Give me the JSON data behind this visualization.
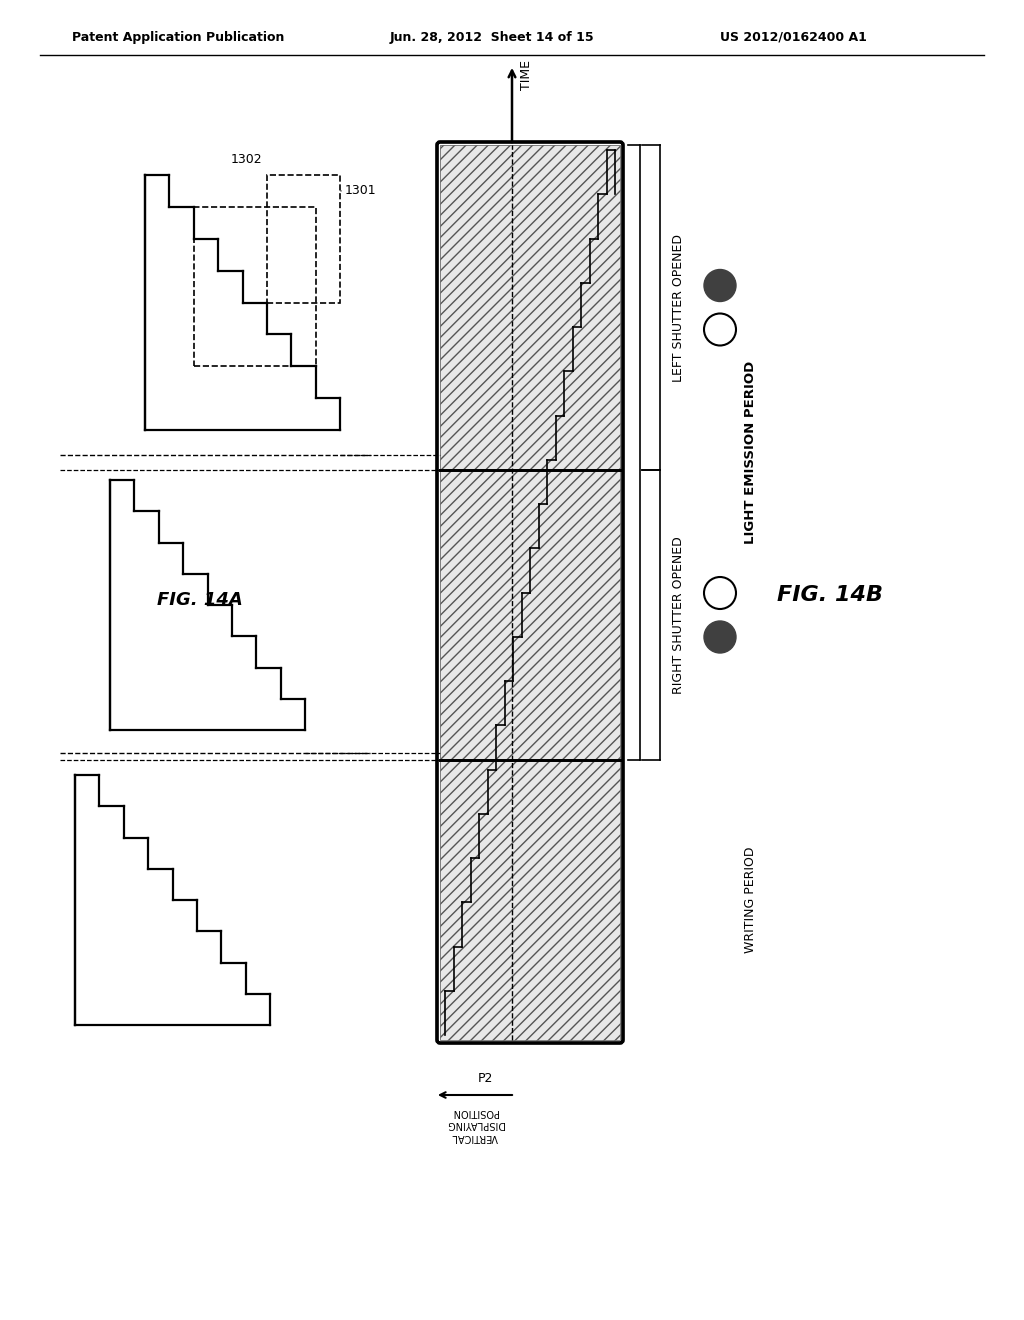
{
  "header_left": "Patent Application Publication",
  "header_mid": "Jun. 28, 2012  Sheet 14 of 15",
  "header_right": "US 2012/0162400 A1",
  "fig14a_label": "FIG. 14A",
  "fig14b_label": "FIG. 14B",
  "label_1301": "1301",
  "label_1302": "1302",
  "label_time": "TIME",
  "label_vertical": "VERTICAL\nDISPLAYING\nPOSITION",
  "label_p2": "P2",
  "label_writing": "WRITING PERIOD",
  "label_light_emission": "LIGHT EMISSION PERIOD",
  "label_left_shutter": "LEFT SHUTTER OPENED",
  "label_right_shutter": "RIGHT SHUTTER OPENED",
  "bg_color": "#ffffff"
}
